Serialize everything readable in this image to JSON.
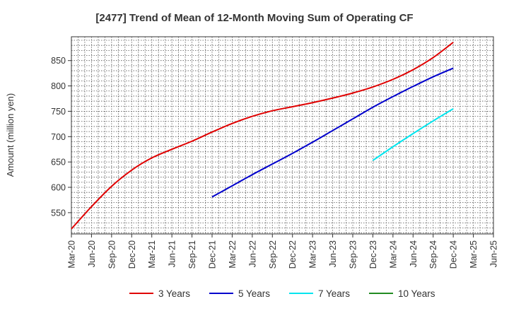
{
  "chart_data": {
    "type": "line",
    "title": "[2477]  Trend of Mean of 12-Month Moving Sum of Operating CF",
    "xlabel": "",
    "ylabel": "Amount (million yen)",
    "x_ticks": [
      "Mar-20",
      "Jun-20",
      "Sep-20",
      "Dec-20",
      "Mar-21",
      "Jun-21",
      "Sep-21",
      "Dec-21",
      "Mar-22",
      "Jun-22",
      "Sep-22",
      "Dec-22",
      "Mar-23",
      "Jun-23",
      "Sep-23",
      "Dec-23",
      "Mar-24",
      "Jun-24",
      "Sep-24",
      "Dec-24",
      "Mar-25",
      "Jun-25"
    ],
    "xlim": [
      "Mar-20",
      "Jun-25"
    ],
    "y_ticks": [
      550,
      600,
      650,
      700,
      750,
      800,
      850
    ],
    "ylim": [
      508,
      897
    ],
    "grid": true,
    "legend_position": "bottom",
    "series": [
      {
        "name": "3 Years",
        "color": "#e00000",
        "points": [
          [
            "Mar-20",
            518
          ],
          [
            "Jun-20",
            562
          ],
          [
            "Sep-20",
            602
          ],
          [
            "Dec-20",
            634
          ],
          [
            "Mar-21",
            658
          ],
          [
            "Jun-21",
            675
          ],
          [
            "Sep-21",
            691
          ],
          [
            "Dec-21",
            709
          ],
          [
            "Mar-22",
            726
          ],
          [
            "Jun-22",
            740
          ],
          [
            "Sep-22",
            751
          ],
          [
            "Dec-22",
            759
          ],
          [
            "Mar-23",
            767
          ],
          [
            "Jun-23",
            776
          ],
          [
            "Sep-23",
            786
          ],
          [
            "Dec-23",
            798
          ],
          [
            "Mar-24",
            813
          ],
          [
            "Jun-24",
            832
          ],
          [
            "Sep-24",
            856
          ],
          [
            "Dec-24",
            886
          ]
        ]
      },
      {
        "name": "5 Years",
        "color": "#0000cc",
        "points": [
          [
            "Dec-21",
            581
          ],
          [
            "Mar-22",
            603
          ],
          [
            "Jun-22",
            625
          ],
          [
            "Sep-22",
            646
          ],
          [
            "Dec-22",
            667
          ],
          [
            "Mar-23",
            689
          ],
          [
            "Jun-23",
            712
          ],
          [
            "Sep-23",
            735
          ],
          [
            "Dec-23",
            758
          ],
          [
            "Mar-24",
            779
          ],
          [
            "Jun-24",
            799
          ],
          [
            "Sep-24",
            818
          ],
          [
            "Dec-24",
            835
          ]
        ]
      },
      {
        "name": "7 Years",
        "color": "#00e5ee",
        "points": [
          [
            "Dec-23",
            653
          ],
          [
            "Mar-24",
            680
          ],
          [
            "Jun-24",
            706
          ],
          [
            "Sep-24",
            731
          ],
          [
            "Dec-24",
            755
          ]
        ]
      },
      {
        "name": "10 Years",
        "color": "#228b22",
        "points": []
      }
    ]
  }
}
